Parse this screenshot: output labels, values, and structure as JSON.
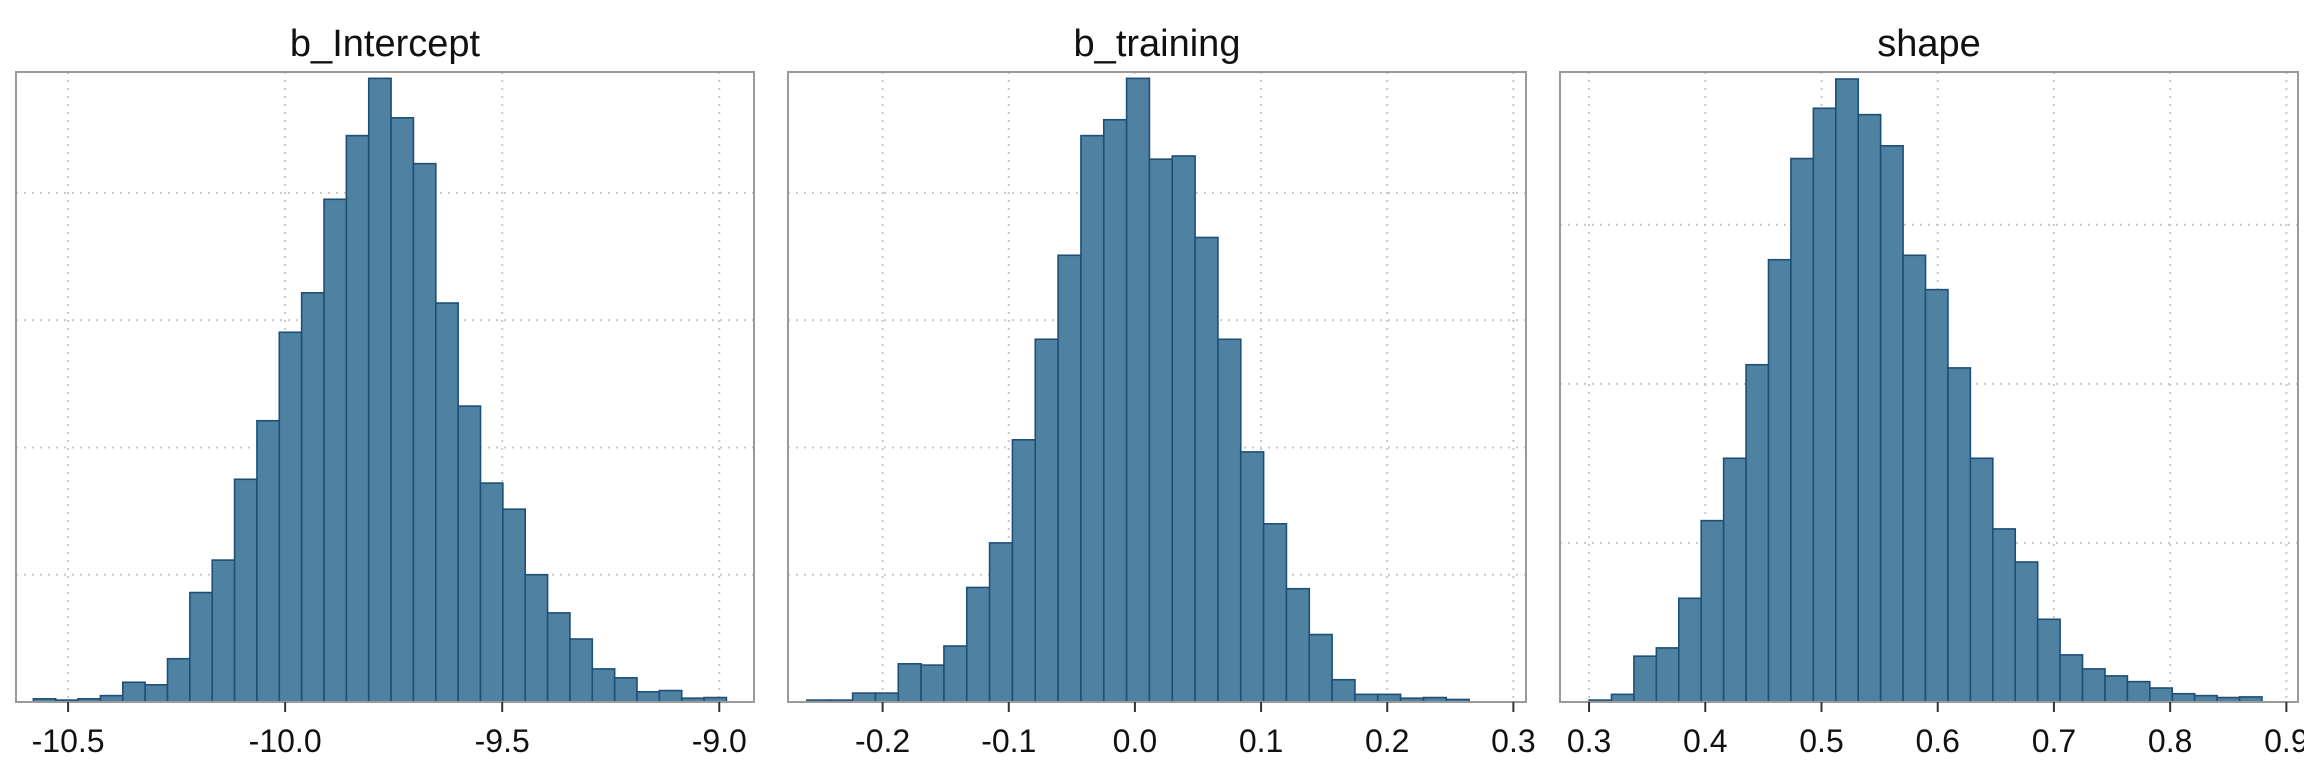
{
  "colors": {
    "bar_fill": "#4f82a1",
    "bar_stroke": "#1f4e79",
    "grid": "#c8c8c8",
    "panel_border": "#9a9a9a",
    "text": "#111111"
  },
  "chart_data": [
    {
      "type": "bar",
      "title": "b_Intercept",
      "xlabel": "",
      "ylabel": "",
      "grid": true,
      "xlim": [
        -10.62,
        -8.92
      ],
      "ylim": [
        0,
        0.99
      ],
      "x_ticks": [
        -10.5,
        -10.0,
        -9.5,
        -9.0
      ],
      "x_tick_labels": [
        "-10.5",
        "-10.0",
        "-9.5",
        "-9.0"
      ],
      "y_grid": [
        0.2,
        0.4,
        0.6,
        0.8
      ],
      "bin_start": -10.58,
      "bin_width": 0.0515,
      "values": [
        0.005,
        0.003,
        0.005,
        0.01,
        0.031,
        0.027,
        0.068,
        0.172,
        0.223,
        0.35,
        0.442,
        0.581,
        0.643,
        0.79,
        0.89,
        0.98,
        0.918,
        0.846,
        0.627,
        0.465,
        0.344,
        0.303,
        0.2,
        0.14,
        0.099,
        0.052,
        0.038,
        0.016,
        0.018,
        0.006,
        0.007
      ]
    },
    {
      "type": "bar",
      "title": "b_training",
      "xlabel": "",
      "ylabel": "",
      "grid": true,
      "xlim": [
        -0.275,
        0.31
      ],
      "ylim": [
        0,
        0.99
      ],
      "x_ticks": [
        -0.2,
        -0.1,
        0.0,
        0.1,
        0.2,
        0.3
      ],
      "x_tick_labels": [
        "-0.2",
        "-0.1",
        "0.0",
        "0.1",
        "0.2",
        "0.3"
      ],
      "y_grid": [
        0.2,
        0.4,
        0.6,
        0.8
      ],
      "bin_start": -0.26,
      "bin_width": 0.0181,
      "values": [
        0.003,
        0.003,
        0.014,
        0.014,
        0.06,
        0.058,
        0.088,
        0.18,
        0.25,
        0.412,
        0.57,
        0.702,
        0.89,
        0.915,
        0.98,
        0.853,
        0.858,
        0.73,
        0.57,
        0.393,
        0.28,
        0.178,
        0.106,
        0.035,
        0.012,
        0.012,
        0.006,
        0.007,
        0.004
      ]
    },
    {
      "type": "bar",
      "title": "shape",
      "xlabel": "",
      "ylabel": "",
      "grid": true,
      "xlim": [
        0.275,
        0.91
      ],
      "ylim": [
        0,
        0.99
      ],
      "x_ticks": [
        0.3,
        0.4,
        0.5,
        0.6,
        0.7,
        0.8,
        0.9
      ],
      "x_tick_labels": [
        "0.3",
        "0.4",
        "0.5",
        "0.6",
        "0.7",
        "0.8",
        "0.9"
      ],
      "y_grid": [
        0.25,
        0.5,
        0.75
      ],
      "bin_start": 0.3,
      "bin_width": 0.0193,
      "values": [
        0.003,
        0.012,
        0.072,
        0.085,
        0.163,
        0.285,
        0.383,
        0.53,
        0.695,
        0.854,
        0.933,
        0.979,
        0.923,
        0.874,
        0.702,
        0.648,
        0.525,
        0.383,
        0.272,
        0.22,
        0.13,
        0.074,
        0.052,
        0.041,
        0.032,
        0.022,
        0.013,
        0.01,
        0.007,
        0.008
      ]
    }
  ]
}
